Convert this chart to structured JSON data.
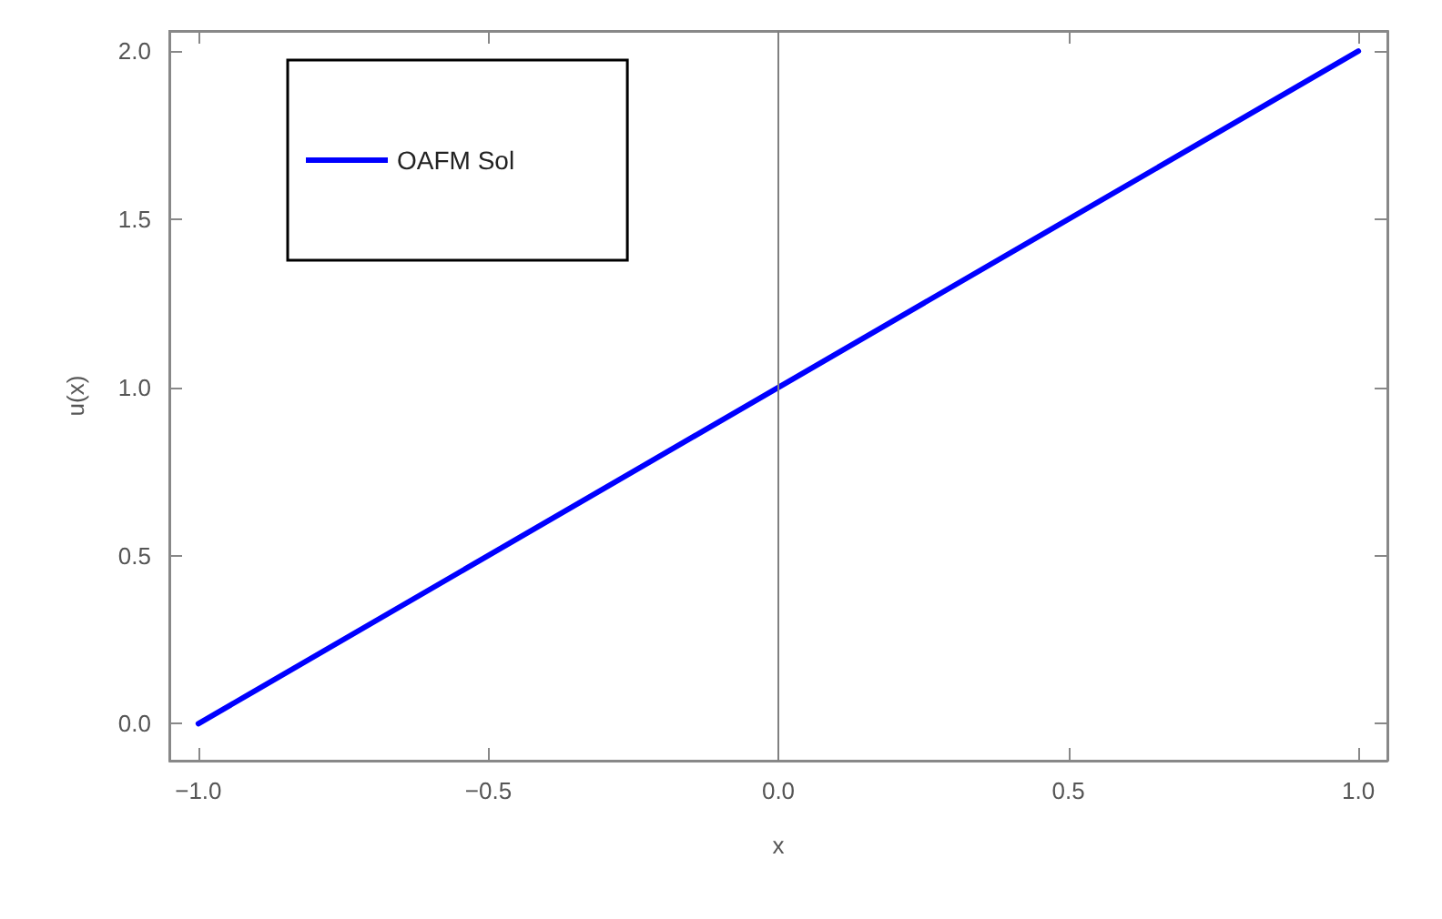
{
  "chart_data": {
    "type": "line",
    "xlabel": "x",
    "ylabel": "u(x)",
    "x": [
      -1,
      1
    ],
    "series": [
      {
        "name": "OAFM Sol",
        "color": "#0000ff",
        "values": [
          0,
          2
        ]
      }
    ],
    "xlim": [
      -1.05,
      1.05
    ],
    "ylim": [
      -0.11,
      2.06
    ],
    "xticks": [
      {
        "value": -1,
        "label": "−1.0"
      },
      {
        "value": -0.5,
        "label": "−0.5"
      },
      {
        "value": 0,
        "label": "0.0"
      },
      {
        "value": 0.5,
        "label": "0.5"
      },
      {
        "value": 1,
        "label": "1.0"
      }
    ],
    "yticks": [
      {
        "value": 0,
        "label": "0.0"
      },
      {
        "value": 0.5,
        "label": "0.5"
      },
      {
        "value": 1,
        "label": "1.0"
      },
      {
        "value": 1.5,
        "label": "1.5"
      },
      {
        "value": 2,
        "label": "2.0"
      }
    ],
    "ref_lines": [
      {
        "axis": "x",
        "value": 0,
        "color": "#808080"
      }
    ],
    "legend": "top left",
    "grid": false,
    "marker": "none",
    "line_style": "solid"
  }
}
